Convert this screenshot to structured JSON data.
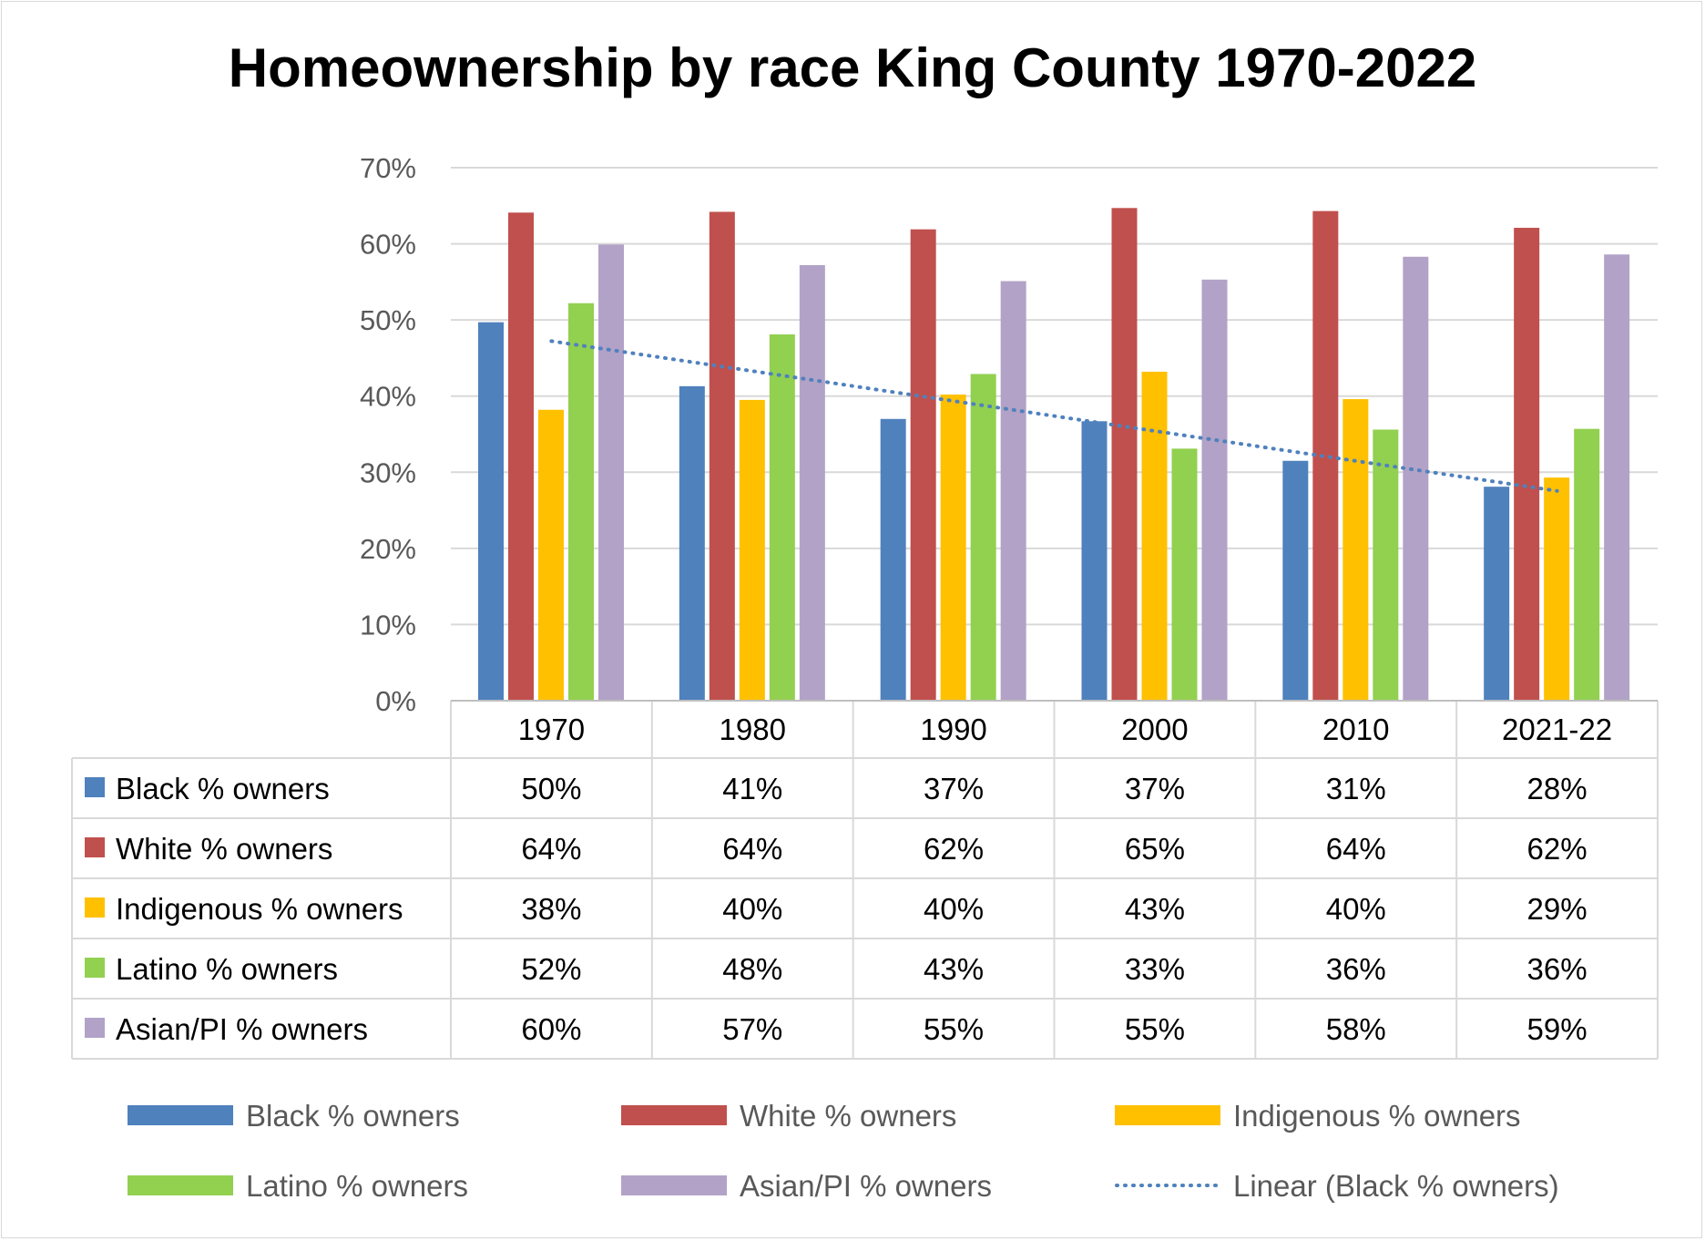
{
  "chart_data": {
    "type": "bar",
    "title": "Homeownership by race King County 1970-2022",
    "categories": [
      "1970",
      "1980",
      "1990",
      "2000",
      "2010",
      "2021-22"
    ],
    "ylim": [
      0,
      0.7
    ],
    "yticks": [
      "0%",
      "10%",
      "20%",
      "30%",
      "40%",
      "50%",
      "60%",
      "70%"
    ],
    "grid": true,
    "legend_position": "bottom",
    "series": [
      {
        "name": "Black % owners",
        "color": "#4f81bd",
        "values": [
          0.497,
          0.413,
          0.37,
          0.367,
          0.315,
          0.281
        ],
        "labels": [
          "50%",
          "41%",
          "37%",
          "37%",
          "31%",
          "28%"
        ]
      },
      {
        "name": "White % owners",
        "color": "#c0504d",
        "values": [
          0.641,
          0.642,
          0.619,
          0.647,
          0.643,
          0.621
        ],
        "labels": [
          "64%",
          "64%",
          "62%",
          "65%",
          "64%",
          "62%"
        ]
      },
      {
        "name": "Indigenous % owners",
        "color": "#ffc000",
        "values": [
          0.382,
          0.395,
          0.402,
          0.432,
          0.396,
          0.293
        ],
        "labels": [
          "38%",
          "40%",
          "40%",
          "43%",
          "40%",
          "29%"
        ]
      },
      {
        "name": "Latino % owners",
        "color": "#92d050",
        "values": [
          0.522,
          0.481,
          0.429,
          0.331,
          0.356,
          0.357
        ],
        "labels": [
          "52%",
          "48%",
          "43%",
          "33%",
          "36%",
          "36%"
        ]
      },
      {
        "name": "Asian/PI % owners",
        "color": "#b2a2c7",
        "values": [
          0.599,
          0.572,
          0.551,
          0.553,
          0.583,
          0.586
        ],
        "labels": [
          "60%",
          "57%",
          "55%",
          "55%",
          "58%",
          "59%"
        ]
      }
    ],
    "trendline": {
      "name": "Linear (Black % owners)",
      "of_series": "Black % owners",
      "type": "linear",
      "color": "#4f81bd",
      "style": "dotted"
    }
  }
}
